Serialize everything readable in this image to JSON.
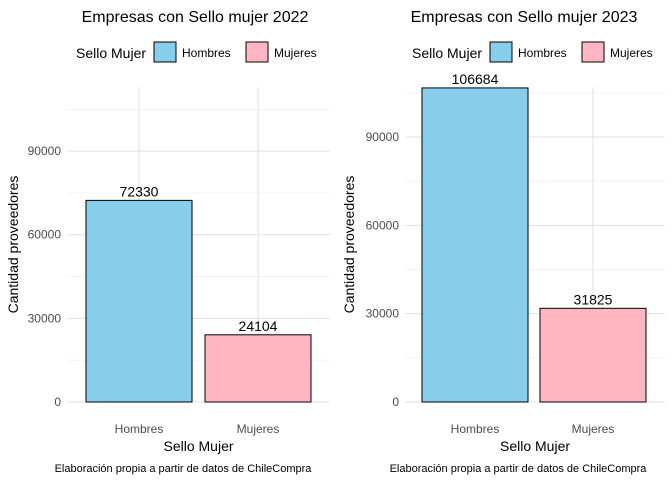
{
  "chart_data": [
    {
      "type": "bar",
      "title": "Empresas con Sello mujer 2022",
      "xlabel": "Sello Mujer",
      "ylabel": "Cantidad proveedores",
      "caption": "Elaboración propia a partir de datos de ChileCompra",
      "legend": {
        "title": "Sello Mujer",
        "position": "top",
        "entries": [
          "Hombres",
          "Mujeres"
        ]
      },
      "categories": [
        "Hombres",
        "Mujeres"
      ],
      "values": [
        72330,
        24104
      ],
      "data_labels": [
        "72330",
        "24104"
      ],
      "colors": [
        "#87CEEB",
        "#FFB6C1"
      ],
      "yticks": [
        0,
        30000,
        60000,
        90000
      ],
      "ytick_labels": [
        "0",
        "30000",
        "60000",
        "90000"
      ],
      "ylim": [
        0,
        113000
      ],
      "grid": true
    },
    {
      "type": "bar",
      "title": "Empresas con Sello mujer 2023",
      "xlabel": "Sello Mujer",
      "ylabel": "Cantidad proveedores",
      "caption": "Elaboración propia a partir de datos de ChileCompra",
      "legend": {
        "title": "Sello Mujer",
        "position": "top",
        "entries": [
          "Hombres",
          "Mujeres"
        ]
      },
      "categories": [
        "Hombres",
        "Mujeres"
      ],
      "values": [
        106684,
        31825
      ],
      "data_labels": [
        "106684",
        "31825"
      ],
      "colors": [
        "#87CEEB",
        "#FFB6C1"
      ],
      "yticks": [
        0,
        30000,
        60000,
        90000
      ],
      "ytick_labels": [
        "0",
        "30000",
        "60000",
        "90000"
      ],
      "ylim": [
        0,
        107000
      ],
      "grid": true
    }
  ]
}
